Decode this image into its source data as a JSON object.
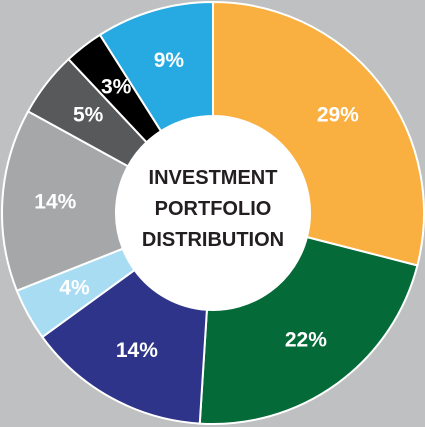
{
  "chart_data": {
    "type": "donut",
    "title": "INVESTMENT PORTFOLIO DISTRIBUTION",
    "values": [
      29,
      22,
      14,
      4,
      14,
      5,
      3,
      9
    ],
    "value_labels": [
      "29%",
      "22%",
      "14%",
      "4%",
      "14%",
      "5%",
      "3%",
      "9%"
    ],
    "colors": [
      "#f9b040",
      "#046b38",
      "#2e3489",
      "#a8dcf3",
      "#a6a7a9",
      "#58595b",
      "#000000",
      "#27aae1"
    ]
  }
}
